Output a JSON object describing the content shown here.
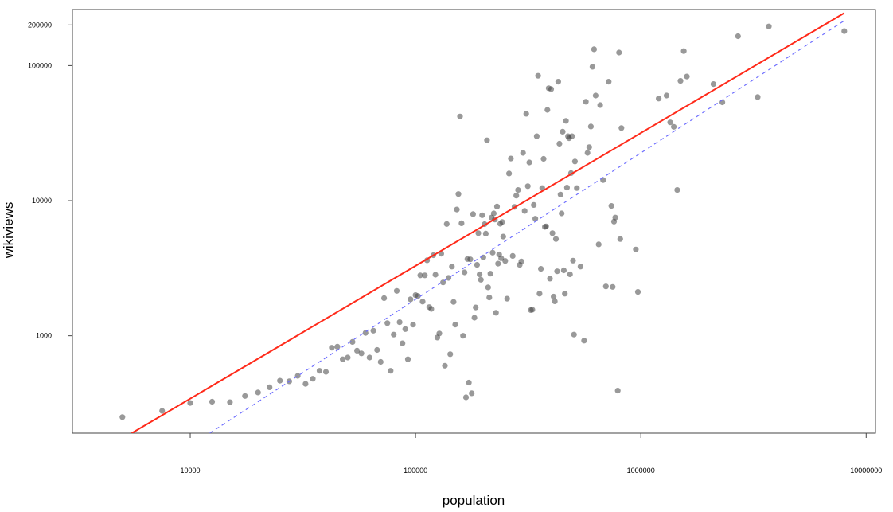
{
  "chart_data": {
    "type": "scatter",
    "title": "",
    "xlabel": "population",
    "ylabel": "wikiviews",
    "x_scale": "log",
    "y_scale": "log",
    "xlim": [
      3000,
      11000000
    ],
    "ylim": [
      190,
      260000
    ],
    "x_ticks": [
      {
        "value": 10000,
        "label": "10000"
      },
      {
        "value": 100000,
        "label": "100000"
      },
      {
        "value": 1000000,
        "label": "1000000"
      },
      {
        "value": 10000000,
        "label": "10000000"
      }
    ],
    "y_ticks": [
      {
        "value": 1000,
        "label": "1000"
      },
      {
        "value": 10000,
        "label": "10000"
      },
      {
        "value": 100000,
        "label": "100000"
      },
      {
        "value": 200000,
        "label": "200000"
      }
    ],
    "grid": false,
    "legend": "none",
    "point_color": "rgba(70,70,70,0.55)",
    "lines": [
      {
        "style": "solid",
        "color": "#ff2a1a",
        "points": [
          [
            5500,
            190
          ],
          [
            8000000,
            245000
          ]
        ]
      },
      {
        "style": "dashed",
        "color": "#6f6fff",
        "points": [
          [
            12200,
            190
          ],
          [
            8000000,
            215000
          ]
        ]
      }
    ],
    "points": [
      [
        5000,
        250
      ],
      [
        7500,
        278
      ],
      [
        10000,
        318
      ],
      [
        12500,
        325
      ],
      [
        15000,
        322
      ],
      [
        17500,
        358
      ],
      [
        20000,
        380
      ],
      [
        22500,
        415
      ],
      [
        25000,
        465
      ],
      [
        27500,
        460
      ],
      [
        30000,
        505
      ],
      [
        32500,
        440
      ],
      [
        35000,
        480
      ],
      [
        37500,
        550
      ],
      [
        40000,
        540
      ],
      [
        42500,
        815
      ],
      [
        45000,
        830
      ],
      [
        47500,
        670
      ],
      [
        50000,
        690
      ],
      [
        52500,
        900
      ],
      [
        55000,
        775
      ],
      [
        57500,
        740
      ],
      [
        60000,
        1050
      ],
      [
        62500,
        690
      ],
      [
        65000,
        1090
      ],
      [
        67500,
        785
      ],
      [
        70000,
        640
      ],
      [
        72500,
        1900
      ],
      [
        75000,
        1240
      ],
      [
        77500,
        550
      ],
      [
        80000,
        1020
      ],
      [
        82500,
        2150
      ],
      [
        85000,
        1260
      ],
      [
        87500,
        880
      ],
      [
        90000,
        1120
      ],
      [
        92500,
        670
      ],
      [
        95000,
        1860
      ],
      [
        97500,
        1210
      ],
      [
        100000,
        2000
      ],
      [
        102500,
        1970
      ],
      [
        105000,
        2800
      ],
      [
        107500,
        1790
      ],
      [
        110000,
        2800
      ],
      [
        112500,
        3620
      ],
      [
        115000,
        1630
      ],
      [
        117500,
        1580
      ],
      [
        120000,
        3950
      ],
      [
        122500,
        2830
      ],
      [
        125000,
        970
      ],
      [
        127500,
        1040
      ],
      [
        130000,
        4050
      ],
      [
        132500,
        2480
      ],
      [
        135000,
        600
      ],
      [
        137500,
        6720
      ],
      [
        140000,
        2680
      ],
      [
        142500,
        730
      ],
      [
        145000,
        3250
      ],
      [
        147500,
        1780
      ],
      [
        150000,
        1210
      ],
      [
        152500,
        8600
      ],
      [
        155000,
        11200
      ],
      [
        157500,
        42000
      ],
      [
        160000,
        6800
      ],
      [
        162500,
        1000
      ],
      [
        165000,
        2950
      ],
      [
        167500,
        350
      ],
      [
        170000,
        3700
      ],
      [
        172500,
        450
      ],
      [
        175000,
        3680
      ],
      [
        177500,
        375
      ],
      [
        180000,
        7950
      ],
      [
        182500,
        1360
      ],
      [
        185000,
        1620
      ],
      [
        187500,
        3350
      ],
      [
        190000,
        5750
      ],
      [
        192500,
        2850
      ],
      [
        195000,
        2600
      ],
      [
        197500,
        7800
      ],
      [
        200000,
        3800
      ],
      [
        202500,
        6700
      ],
      [
        205000,
        5700
      ],
      [
        207500,
        28000
      ],
      [
        210000,
        2280
      ],
      [
        212500,
        1920
      ],
      [
        215000,
        2880
      ],
      [
        217500,
        7500
      ],
      [
        220000,
        4120
      ],
      [
        222500,
        8050
      ],
      [
        225000,
        7250
      ],
      [
        227500,
        1480
      ],
      [
        230000,
        9050
      ],
      [
        232500,
        3420
      ],
      [
        235000,
        4000
      ],
      [
        237500,
        6750
      ],
      [
        240000,
        3750
      ],
      [
        242500,
        6950
      ],
      [
        245000,
        5420
      ],
      [
        250000,
        3580
      ],
      [
        255000,
        1880
      ],
      [
        260000,
        15900
      ],
      [
        265000,
        20500
      ],
      [
        270000,
        3900
      ],
      [
        275000,
        9000
      ],
      [
        280000,
        10900
      ],
      [
        285000,
        12000
      ],
      [
        290000,
        3350
      ],
      [
        295000,
        3550
      ],
      [
        300000,
        22600
      ],
      [
        305000,
        8400
      ],
      [
        310000,
        44000
      ],
      [
        315000,
        12800
      ],
      [
        320000,
        19200
      ],
      [
        325000,
        1550
      ],
      [
        330000,
        1560
      ],
      [
        335000,
        9300
      ],
      [
        340000,
        7350
      ],
      [
        345000,
        30000
      ],
      [
        350000,
        84000
      ],
      [
        355000,
        2050
      ],
      [
        360000,
        3130
      ],
      [
        365000,
        12400
      ],
      [
        370000,
        20400
      ],
      [
        375000,
        6400
      ],
      [
        380000,
        6450
      ],
      [
        385000,
        47000
      ],
      [
        390000,
        68000
      ],
      [
        395000,
        2650
      ],
      [
        400000,
        67000
      ],
      [
        405000,
        5750
      ],
      [
        410000,
        1950
      ],
      [
        415000,
        1800
      ],
      [
        420000,
        5200
      ],
      [
        425000,
        3000
      ],
      [
        430000,
        76000
      ],
      [
        435000,
        26400
      ],
      [
        440000,
        11100
      ],
      [
        445000,
        8050
      ],
      [
        450000,
        32400
      ],
      [
        455000,
        3050
      ],
      [
        460000,
        2050
      ],
      [
        465000,
        39000
      ],
      [
        470000,
        12500
      ],
      [
        475000,
        30000
      ],
      [
        480000,
        29000
      ],
      [
        485000,
        2850
      ],
      [
        490000,
        16000
      ],
      [
        495000,
        30000
      ],
      [
        500000,
        3600
      ],
      [
        505000,
        1020
      ],
      [
        510000,
        19500
      ],
      [
        520000,
        12400
      ],
      [
        540000,
        3250
      ],
      [
        560000,
        920
      ],
      [
        570000,
        54000
      ],
      [
        580000,
        22600
      ],
      [
        590000,
        24900
      ],
      [
        600000,
        35400
      ],
      [
        610000,
        98000
      ],
      [
        620000,
        132000
      ],
      [
        630000,
        60000
      ],
      [
        650000,
        4750
      ],
      [
        660000,
        51000
      ],
      [
        680000,
        14200
      ],
      [
        700000,
        2320
      ],
      [
        720000,
        76000
      ],
      [
        740000,
        9150
      ],
      [
        750000,
        2300
      ],
      [
        760000,
        7000
      ],
      [
        770000,
        7500
      ],
      [
        790000,
        392
      ],
      [
        800000,
        125000
      ],
      [
        810000,
        5200
      ],
      [
        820000,
        34500
      ],
      [
        950000,
        4350
      ],
      [
        970000,
        2110
      ],
      [
        1200000,
        57000
      ],
      [
        1300000,
        60000
      ],
      [
        1350000,
        38000
      ],
      [
        1400000,
        35200
      ],
      [
        1450000,
        12000
      ],
      [
        1500000,
        77000
      ],
      [
        1550000,
        128000
      ],
      [
        1600000,
        83000
      ],
      [
        2100000,
        73000
      ],
      [
        2300000,
        53500
      ],
      [
        2700000,
        165000
      ],
      [
        3300000,
        58500
      ],
      [
        3700000,
        195000
      ],
      [
        8000000,
        180000
      ]
    ]
  }
}
